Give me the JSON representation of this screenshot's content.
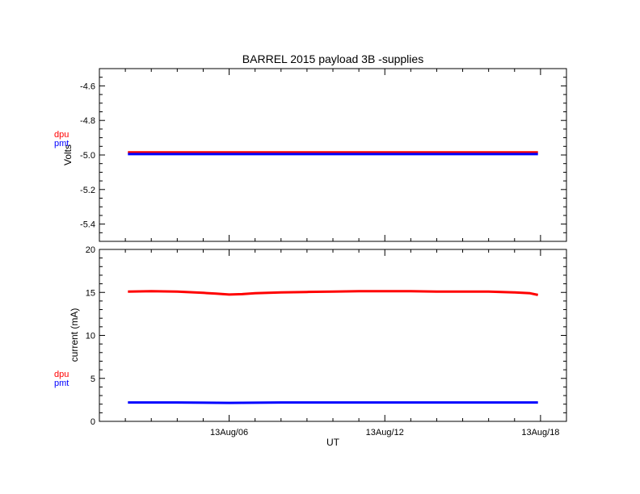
{
  "title": "BARREL 2015 payload 3B -supplies",
  "xlabel": "UT",
  "x_ticks": [
    {
      "hour": 6,
      "label": "13Aug/06"
    },
    {
      "hour": 12,
      "label": "13Aug/12"
    },
    {
      "hour": 18,
      "label": "13Aug/18"
    }
  ],
  "xlim": [
    1,
    19
  ],
  "data_x_range": [
    2.1,
    17.9
  ],
  "colors": {
    "dpu": "#ff0000",
    "pmt": "#0000ff",
    "axis": "#000000"
  },
  "legend": {
    "dpu": "dpu",
    "pmt": "pmt",
    "placement": "left margin"
  },
  "chart_data": [
    {
      "type": "line",
      "panel": "top",
      "ylabel": "Volts",
      "ylim": [
        -5.5,
        -4.5
      ],
      "y_ticks": [
        -5.4,
        -5.2,
        -5.0,
        -4.8,
        -4.6
      ],
      "y_tick_labels": [
        "-5.4",
        "-5.2",
        "-5.0",
        "-4.8",
        "-4.6"
      ],
      "series": [
        {
          "name": "dpu",
          "color": "#ff0000",
          "x": [
            2.1,
            4,
            6,
            8,
            10,
            12,
            14,
            16,
            17.9
          ],
          "values": [
            -4.985,
            -4.985,
            -4.985,
            -4.985,
            -4.985,
            -4.985,
            -4.985,
            -4.985,
            -4.985
          ]
        },
        {
          "name": "pmt",
          "color": "#0000ff",
          "x": [
            2.1,
            4,
            6,
            8,
            10,
            12,
            14,
            16,
            17.9
          ],
          "values": [
            -4.995,
            -4.995,
            -4.995,
            -4.995,
            -4.995,
            -4.995,
            -4.995,
            -4.995,
            -4.995
          ]
        }
      ]
    },
    {
      "type": "line",
      "panel": "bottom",
      "ylabel": "current (mA)",
      "ylim": [
        0,
        20
      ],
      "y_ticks": [
        0,
        5,
        10,
        15,
        20
      ],
      "y_tick_labels": [
        "0",
        "5",
        "10",
        "15",
        "20"
      ],
      "series": [
        {
          "name": "dpu",
          "color": "#ff0000",
          "x": [
            2.1,
            3,
            4,
            5,
            5.5,
            6,
            6.5,
            7,
            8,
            9,
            10,
            11,
            12,
            13,
            14,
            15,
            16,
            17,
            17.6,
            17.9
          ],
          "values": [
            15.1,
            15.15,
            15.1,
            14.95,
            14.85,
            14.75,
            14.8,
            14.9,
            15.0,
            15.05,
            15.1,
            15.15,
            15.15,
            15.15,
            15.1,
            15.1,
            15.1,
            15.0,
            14.9,
            14.7
          ]
        },
        {
          "name": "pmt",
          "color": "#0000ff",
          "x": [
            2.1,
            4,
            6,
            8,
            10,
            12,
            14,
            16,
            17.9
          ],
          "values": [
            2.2,
            2.2,
            2.15,
            2.2,
            2.2,
            2.2,
            2.2,
            2.2,
            2.2
          ]
        }
      ]
    }
  ]
}
